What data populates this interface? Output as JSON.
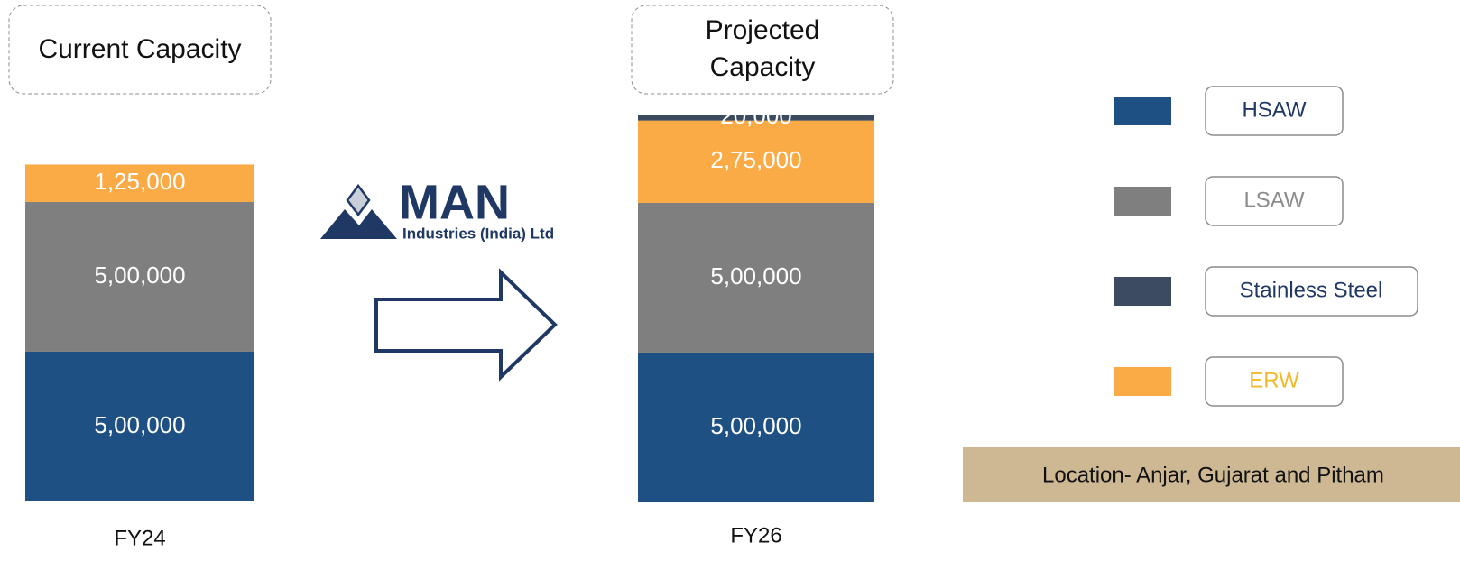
{
  "chart_data": {
    "type": "bar",
    "stacked": true,
    "headers": [
      "Current Capacity",
      "Projected Capacity"
    ],
    "categories": [
      "FY24",
      "FY26"
    ],
    "series": [
      {
        "name": "HSAW",
        "color": "#1f5083",
        "text_color": "#1f3864",
        "values": [
          500000,
          500000
        ],
        "value_labels": [
          "5,00,000",
          "5,00,000"
        ]
      },
      {
        "name": "LSAW",
        "color": "#7f7f7f",
        "text_color": "#8c8c8c",
        "values": [
          500000,
          500000
        ],
        "value_labels": [
          "5,00,000",
          "5,00,000"
        ]
      },
      {
        "name": "Stainless Steel",
        "color": "#3c4b5f",
        "text_color": "#1f3864",
        "values": [
          null,
          20000
        ],
        "value_labels": [
          null,
          "20,000"
        ]
      },
      {
        "name": "ERW",
        "color": "#fbab45",
        "text_color": "#f2b92a",
        "values": [
          125000,
          275000
        ],
        "value_labels": [
          "1,25,000",
          "2,75,000"
        ]
      }
    ],
    "logo": {
      "name": "MAN",
      "subtitle": "Industries (India) Ltd"
    },
    "note": "Location- Anjar, Gujarat and Pitham"
  }
}
